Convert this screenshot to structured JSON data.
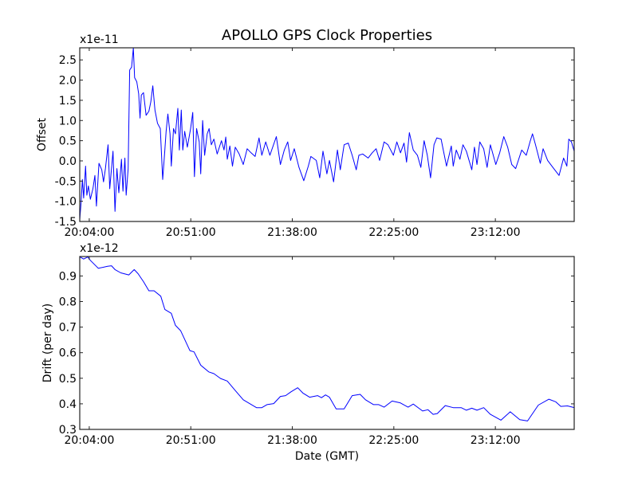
{
  "chart_data": [
    {
      "type": "line",
      "title": "APOLLO GPS Clock Properties",
      "ylabel": "Offset",
      "xlabel": "",
      "y_multiplier_label": "x1e-11",
      "x_unit": "minutes since 20:04:00 GMT",
      "xlim": [
        -4.4,
        224.5
      ],
      "ylim": [
        -1.5,
        2.8
      ],
      "xticks": [
        0,
        47,
        94,
        141,
        188
      ],
      "xtick_labels": [
        "20:04:00",
        "20:51:00",
        "21:38:00",
        "22:25:00",
        "23:12:00"
      ],
      "yticks": [
        -1.5,
        -1.0,
        -0.5,
        0.0,
        0.5,
        1.0,
        1.5,
        2.0,
        2.5
      ],
      "ytick_labels": [
        "-1.5",
        "-1.0",
        "-0.5",
        "0.0",
        "0.5",
        "1.0",
        "1.5",
        "2.0",
        "2.5"
      ],
      "color": "#0000ff",
      "series": [
        {
          "name": "Offset",
          "x": [
            -4.4,
            -3.8,
            -3.2,
            -2.6,
            -1.7,
            -1.1,
            -0.4,
            0.5,
            1.7,
            2.6,
            3.3,
            4.5,
            5.8,
            6.6,
            7.5,
            8.7,
            9.5,
            11.0,
            11.9,
            12.8,
            13.7,
            14.9,
            15.6,
            16.5,
            17.1,
            18.0,
            18.7,
            19.6,
            20.4,
            21.0,
            22.0,
            22.9,
            23.5,
            24.1,
            25.1,
            26.3,
            27.6,
            28.5,
            29.4,
            30.4,
            31.6,
            32.9,
            34.0,
            35.0,
            35.6,
            36.4,
            37.4,
            38.0,
            39.0,
            39.9,
            41.0,
            41.7,
            42.6,
            43.3,
            44.2,
            45.4,
            46.9,
            47.9,
            48.7,
            49.7,
            50.9,
            51.6,
            52.5,
            53.4,
            54.6,
            55.5,
            56.5,
            57.7,
            59.2,
            61.2,
            62.4,
            63.2,
            63.9,
            65.1,
            66.3,
            67.6,
            69.4,
            71.3,
            73.1,
            74.9,
            76.8,
            78.6,
            79.9,
            81.7,
            83.6,
            86.6,
            88.5,
            90.3,
            91.9,
            93.2,
            94.9,
            97.1,
            99.3,
            101.4,
            102.6,
            105.1,
            106.7,
            108.2,
            110.0,
            111.2,
            113.1,
            114.9,
            116.2,
            118.0,
            119.9,
            121.7,
            123.6,
            124.8,
            126.6,
            129.1,
            131.0,
            132.8,
            134.4,
            136.5,
            138.3,
            140.8,
            142.4,
            144.1,
            145.7,
            146.9,
            148.2,
            150.0,
            151.9,
            153.5,
            155.0,
            156.5,
            158.0,
            159.6,
            160.9,
            162.9,
            165.4,
            167.6,
            168.5,
            169.9,
            171.6,
            173.0,
            174.6,
            177.1,
            178.3,
            179.5,
            180.8,
            182.6,
            184.2,
            185.7,
            188.2,
            190.0,
            191.9,
            193.7,
            195.6,
            197.4,
            200.2,
            202.3,
            204.2,
            205.2,
            206.6,
            208.8,
            210.1,
            212.2,
            214.6,
            217.5,
            219.6,
            221.1,
            222.0,
            223.2,
            224.5
          ],
          "y": [
            -1.45,
            -1.05,
            -0.46,
            -0.92,
            -0.13,
            -0.85,
            -0.62,
            -0.95,
            -0.69,
            -0.36,
            -1.12,
            -0.06,
            -0.22,
            -0.52,
            -0.19,
            0.4,
            -0.69,
            0.24,
            -1.25,
            -0.19,
            -0.79,
            0.04,
            -0.75,
            0.07,
            -0.85,
            -0.19,
            2.25,
            2.32,
            2.8,
            2.06,
            1.96,
            1.66,
            1.06,
            1.63,
            1.69,
            1.13,
            1.23,
            1.46,
            1.86,
            1.26,
            0.93,
            0.8,
            -0.46,
            0.27,
            0.73,
            1.16,
            0.67,
            -0.13,
            0.8,
            0.67,
            1.3,
            0.27,
            1.26,
            0.27,
            0.73,
            0.34,
            0.8,
            1.2,
            -0.39,
            0.8,
            0.47,
            -0.32,
            1.0,
            0.14,
            0.67,
            0.8,
            0.4,
            0.54,
            0.17,
            0.5,
            0.27,
            0.59,
            0.04,
            0.37,
            -0.13,
            0.34,
            0.17,
            -0.09,
            0.3,
            0.2,
            0.11,
            0.57,
            0.14,
            0.47,
            0.14,
            0.6,
            -0.09,
            0.27,
            0.47,
            0.01,
            0.3,
            -0.16,
            -0.49,
            -0.13,
            0.11,
            0.01,
            -0.42,
            0.24,
            -0.32,
            0.01,
            -0.52,
            0.27,
            -0.22,
            0.4,
            0.44,
            0.14,
            -0.22,
            0.14,
            0.17,
            0.07,
            0.2,
            0.3,
            0.01,
            0.47,
            0.4,
            0.14,
            0.47,
            0.2,
            0.44,
            -0.03,
            0.7,
            0.27,
            0.14,
            -0.16,
            0.5,
            0.14,
            -0.42,
            0.4,
            0.57,
            0.54,
            -0.13,
            0.37,
            -0.13,
            0.27,
            0.04,
            0.4,
            0.24,
            -0.22,
            0.34,
            -0.09,
            0.47,
            0.3,
            -0.16,
            0.4,
            -0.09,
            0.2,
            0.6,
            0.34,
            -0.09,
            -0.19,
            0.27,
            0.14,
            0.5,
            0.67,
            0.4,
            -0.06,
            0.3,
            0.01,
            -0.16,
            -0.36,
            0.07,
            -0.13,
            0.54,
            0.47,
            0.24
          ]
        }
      ]
    },
    {
      "type": "line",
      "title": "",
      "ylabel": "Drift (per day)",
      "xlabel": "Date (GMT)",
      "y_multiplier_label": "x1e-12",
      "x_unit": "minutes since 20:04:00 GMT",
      "xlim": [
        -4.4,
        224.5
      ],
      "ylim": [
        0.3,
        0.976
      ],
      "xticks": [
        0,
        47,
        94,
        141,
        188
      ],
      "xtick_labels": [
        "20:04:00",
        "20:51:00",
        "21:38:00",
        "22:25:00",
        "23:12:00"
      ],
      "yticks": [
        0.3,
        0.4,
        0.5,
        0.6,
        0.7,
        0.8,
        0.9
      ],
      "ytick_labels": [
        "0.3",
        "0.4",
        "0.5",
        "0.6",
        "0.7",
        "0.8",
        "0.9"
      ],
      "color": "#0000ff",
      "series": [
        {
          "name": "Drift",
          "x": [
            -4.4,
            -2.6,
            -0.7,
            0.5,
            4.2,
            8.5,
            10.3,
            11.9,
            14.6,
            18.3,
            20.8,
            22.6,
            25.1,
            27.6,
            30.0,
            33.1,
            35.0,
            38.0,
            39.9,
            42.3,
            46.6,
            48.5,
            51.6,
            55.3,
            57.7,
            60.8,
            63.9,
            67.6,
            71.3,
            77.4,
            79.9,
            82.3,
            85.4,
            88.5,
            90.9,
            93.4,
            96.5,
            98.9,
            102.0,
            105.7,
            107.5,
            109.4,
            111.2,
            114.3,
            118.0,
            121.7,
            125.4,
            127.9,
            131.6,
            134.0,
            136.5,
            140.2,
            143.9,
            147.6,
            150.0,
            154.3,
            156.8,
            159.2,
            161.1,
            164.8,
            168.5,
            172.2,
            174.6,
            177.1,
            179.5,
            182.6,
            185.7,
            190.6,
            194.9,
            199.3,
            202.9,
            207.9,
            212.8,
            215.9,
            218.3,
            221.4,
            224.5
          ],
          "y": [
            0.975,
            0.966,
            0.974,
            0.961,
            0.93,
            0.938,
            0.94,
            0.925,
            0.912,
            0.904,
            0.925,
            0.909,
            0.878,
            0.842,
            0.842,
            0.821,
            0.769,
            0.754,
            0.707,
            0.686,
            0.608,
            0.603,
            0.551,
            0.525,
            0.518,
            0.499,
            0.489,
            0.452,
            0.416,
            0.385,
            0.385,
            0.397,
            0.401,
            0.429,
            0.432,
            0.447,
            0.463,
            0.442,
            0.426,
            0.432,
            0.424,
            0.435,
            0.426,
            0.38,
            0.38,
            0.432,
            0.437,
            0.416,
            0.397,
            0.397,
            0.387,
            0.411,
            0.404,
            0.387,
            0.399,
            0.372,
            0.377,
            0.359,
            0.362,
            0.393,
            0.385,
            0.385,
            0.375,
            0.383,
            0.375,
            0.385,
            0.359,
            0.336,
            0.369,
            0.338,
            0.333,
            0.395,
            0.418,
            0.408,
            0.39,
            0.392,
            0.385
          ]
        }
      ]
    }
  ]
}
